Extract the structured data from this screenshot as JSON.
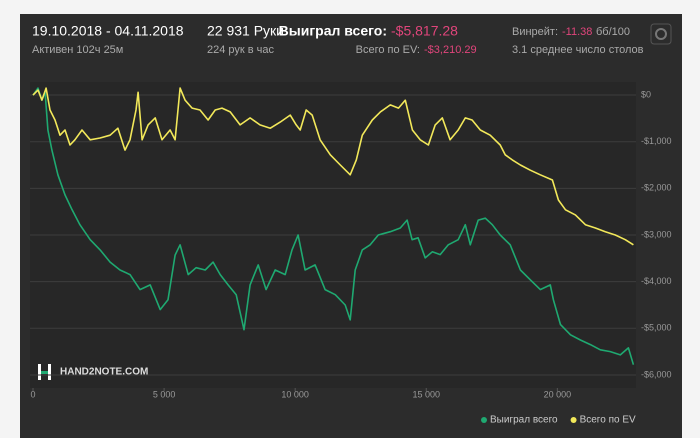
{
  "header": {
    "dates": "19.10.2018 - 04.11.2018",
    "active": "Активен 102ч 25м",
    "hands": "22 931 Руки",
    "rate": "224 рук в час",
    "won_label": "Выиграл всего:",
    "won_value": "-$5,817.28",
    "ev_label": "Всего по EV:",
    "ev_value": "-$3,210.29",
    "winrate_label": "Винрейт:",
    "winrate_value": "-11.38",
    "winrate_unit": "бб/100",
    "tables": "3.1 среднее число столов"
  },
  "watermark": "HAND2NOTE.COM",
  "chart_data": {
    "type": "line",
    "xlim": [
      0,
      23000
    ],
    "xticks": [
      0,
      {
        "value": 5000,
        "label": "5 000"
      },
      {
        "value": 10000,
        "label": "10 000"
      },
      {
        "value": 15000,
        "label": "15 000"
      },
      {
        "value": 20000,
        "label": "20 000"
      }
    ],
    "ylim": [
      -6280,
      280
    ],
    "yticks": [
      {
        "value": 0,
        "label": "$0"
      },
      {
        "value": -1000,
        "label": "-$1,000"
      },
      {
        "value": -2000,
        "label": "-$2,000"
      },
      {
        "value": -3000,
        "label": "-$3,000"
      },
      {
        "value": -4000,
        "label": "-$4,000"
      },
      {
        "value": -5000,
        "label": "-$5,000"
      },
      {
        "value": -6000,
        "label": "-$6,000"
      }
    ],
    "grid": true,
    "legend": "bottom-right",
    "series": [
      {
        "name": "Выиграл всего",
        "color": "#1fa971",
        "x": [
          0,
          190,
          340,
          460,
          570,
          720,
          950,
          1220,
          1490,
          1790,
          2180,
          2560,
          2940,
          3320,
          3700,
          4080,
          4470,
          4850,
          5150,
          5420,
          5610,
          5920,
          6220,
          6570,
          6870,
          7140,
          7440,
          7750,
          8050,
          8280,
          8590,
          8890,
          9240,
          9620,
          9880,
          10110,
          10380,
          10760,
          11140,
          11530,
          11910,
          12100,
          12290,
          12560,
          12860,
          13170,
          13630,
          14010,
          14270,
          14460,
          14690,
          14960,
          15230,
          15530,
          15840,
          16220,
          16490,
          16680,
          16980,
          17250,
          17520,
          17820,
          18200,
          18590,
          18970,
          19350,
          19730,
          19850,
          20120,
          20500,
          20880,
          21260,
          21640,
          22020,
          22400,
          22710,
          22900
        ],
        "values": [
          0,
          150,
          -110,
          60,
          -750,
          -1180,
          -1710,
          -2140,
          -2460,
          -2780,
          -3100,
          -3320,
          -3580,
          -3750,
          -3850,
          -4170,
          -4070,
          -4600,
          -4390,
          -3430,
          -3210,
          -3850,
          -3700,
          -3750,
          -3580,
          -3850,
          -4070,
          -4280,
          -5030,
          -4070,
          -3640,
          -4170,
          -3750,
          -3850,
          -3320,
          -3000,
          -3750,
          -3640,
          -4170,
          -4280,
          -4500,
          -4820,
          -3750,
          -3320,
          -3210,
          -3000,
          -2930,
          -2850,
          -2680,
          -3100,
          -3060,
          -3490,
          -3360,
          -3420,
          -3210,
          -3100,
          -2780,
          -3210,
          -2680,
          -2640,
          -2780,
          -3000,
          -3210,
          -3750,
          -3960,
          -4170,
          -4070,
          -4390,
          -4920,
          -5140,
          -5250,
          -5350,
          -5460,
          -5500,
          -5570,
          -5420,
          -5780
        ]
      },
      {
        "name": "Всего по EV",
        "color": "#f2e85a",
        "x": [
          0,
          190,
          340,
          500,
          650,
          840,
          1030,
          1220,
          1410,
          1600,
          1870,
          2180,
          2560,
          2940,
          3240,
          3510,
          3700,
          3930,
          4010,
          4160,
          4390,
          4660,
          4920,
          5230,
          5420,
          5610,
          5800,
          6070,
          6370,
          6680,
          6950,
          7210,
          7520,
          7900,
          8280,
          8660,
          9050,
          9430,
          9810,
          10040,
          10190,
          10420,
          10650,
          10950,
          11340,
          11720,
          12100,
          12330,
          12560,
          12940,
          13250,
          13630,
          13940,
          14200,
          14470,
          14770,
          15080,
          15340,
          15610,
          15910,
          16220,
          16490,
          16750,
          17060,
          17440,
          17820,
          18010,
          18280,
          18590,
          18970,
          19350,
          19810,
          20040,
          20310,
          20690,
          21070,
          21450,
          21830,
          22210,
          22590,
          22900
        ],
        "values": [
          0,
          107,
          -107,
          150,
          -320,
          -535,
          -860,
          -750,
          -1070,
          -960,
          -750,
          -960,
          -920,
          -860,
          -710,
          -1180,
          -960,
          -320,
          60,
          -960,
          -640,
          -490,
          -960,
          -750,
          -960,
          150,
          -110,
          -280,
          -320,
          -535,
          -320,
          -280,
          -360,
          -640,
          -490,
          -640,
          -710,
          -580,
          -430,
          -640,
          -750,
          -320,
          -430,
          -960,
          -1280,
          -1500,
          -1710,
          -1390,
          -860,
          -535,
          -360,
          -210,
          -280,
          -110,
          -750,
          -960,
          -1070,
          -640,
          -490,
          -960,
          -750,
          -490,
          -535,
          -750,
          -860,
          -1070,
          -1280,
          -1390,
          -1500,
          -1610,
          -1710,
          -1820,
          -2250,
          -2460,
          -2570,
          -2780,
          -2850,
          -2930,
          -3000,
          -3100,
          -3210
        ]
      }
    ]
  }
}
